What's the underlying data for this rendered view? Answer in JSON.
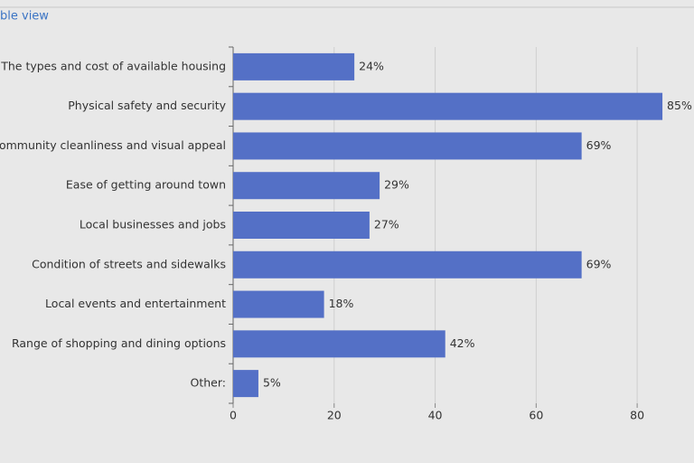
{
  "header": {
    "link": "ble view"
  },
  "chart_data": {
    "type": "bar",
    "orientation": "horizontal",
    "categories": [
      "The types and cost of available housing",
      "Physical safety and security",
      "ommunity cleanliness and visual appeal",
      "Ease of getting around town",
      "Local businesses and jobs",
      "Condition of streets and sidewalks",
      "Local events and entertainment",
      "Range of shopping and dining options",
      "Other:"
    ],
    "values": [
      24,
      85,
      69,
      29,
      27,
      69,
      18,
      42,
      5
    ],
    "value_labels": [
      "24%",
      "85%",
      "69%",
      "29%",
      "27%",
      "69%",
      "18%",
      "42%",
      "5%"
    ],
    "color": "#5470c6",
    "xlim": [
      0,
      90
    ],
    "xticks": [
      0,
      20,
      40,
      60,
      80
    ],
    "grid": true
  }
}
